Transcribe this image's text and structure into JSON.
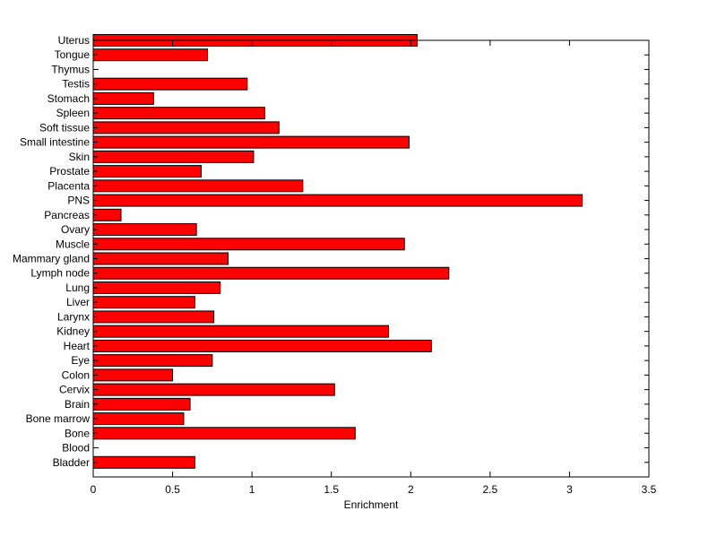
{
  "chart_data": {
    "type": "bar",
    "orientation": "horizontal",
    "title": "",
    "xlabel": "Enrichment",
    "ylabel": "",
    "xlim": [
      0,
      3.5
    ],
    "ylim": [
      0,
      30
    ],
    "xticks": [
      0,
      0.5,
      1,
      1.5,
      2,
      2.5,
      3,
      3.5
    ],
    "xtick_labels": [
      "0",
      "0.5",
      "1",
      "1.5",
      "2",
      "2.5",
      "3",
      "3.5"
    ],
    "grid": false,
    "bar_color": "#ff0000",
    "categories": [
      "Bladder",
      "Blood",
      "Bone",
      "Bone marrow",
      "Brain",
      "Cervix",
      "Colon",
      "Eye",
      "Heart",
      "Kidney",
      "Larynx",
      "Liver",
      "Lung",
      "Lymph node",
      "Mammary gland",
      "Muscle",
      "Ovary",
      "Pancreas",
      "PNS",
      "Placenta",
      "Prostate",
      "Skin",
      "Small intestine",
      "Soft tissue",
      "Spleen",
      "Stomach",
      "Testis",
      "Thymus",
      "Tongue",
      "Uterus"
    ],
    "values": [
      0.64,
      0,
      1.65,
      0.57,
      0.61,
      1.52,
      0.5,
      0.75,
      2.13,
      1.86,
      0.76,
      0.64,
      0.8,
      2.24,
      0.85,
      1.96,
      0.65,
      0.175,
      3.08,
      1.32,
      0.68,
      1.01,
      1.99,
      1.17,
      1.08,
      0.38,
      0.97,
      0,
      0.72,
      2.04
    ]
  }
}
